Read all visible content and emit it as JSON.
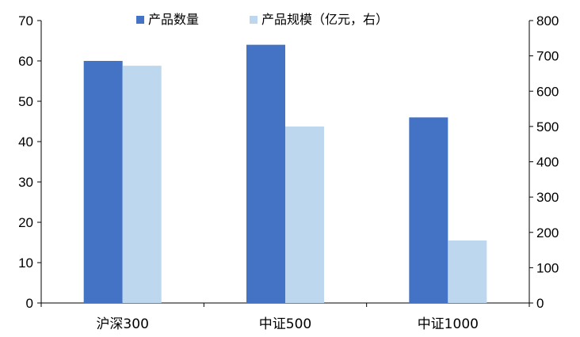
{
  "chart_data": {
    "type": "bar",
    "categories": [
      "沪深300",
      "中证500",
      "中证1000"
    ],
    "series": [
      {
        "name": "产品数量",
        "axis": "left",
        "color": "#4472C4",
        "values": [
          60,
          64,
          46
        ]
      },
      {
        "name": "产品规模（亿元，右）",
        "axis": "right",
        "color": "#BDD7EE",
        "values": [
          672,
          500,
          177
        ]
      }
    ],
    "y_left": {
      "range": [
        0,
        70
      ],
      "ticks": [
        0,
        10,
        20,
        30,
        40,
        50,
        60,
        70
      ]
    },
    "y_right": {
      "range": [
        0,
        800
      ],
      "ticks": [
        0,
        100,
        200,
        300,
        400,
        500,
        600,
        700,
        800
      ]
    },
    "grid": false,
    "legend_position": "top-center"
  }
}
